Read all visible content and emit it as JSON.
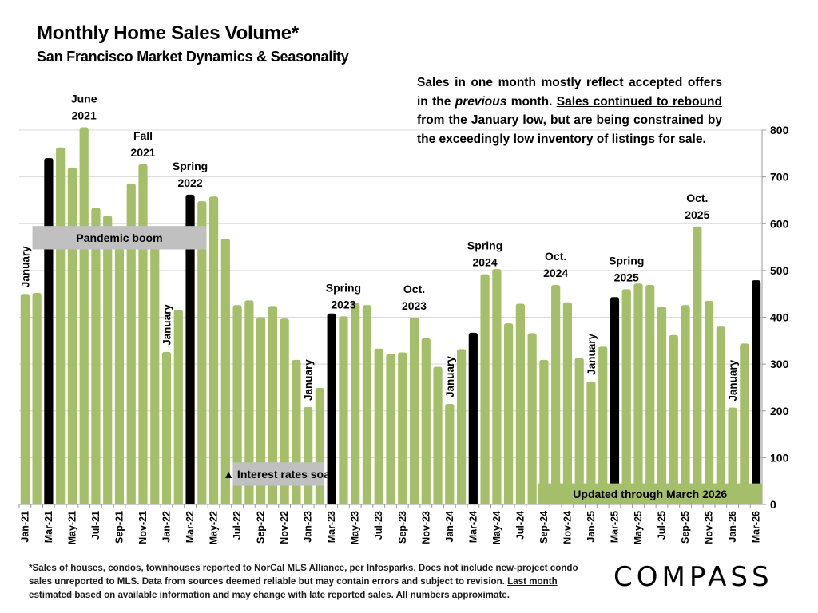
{
  "header": {
    "title": "Monthly Home Sales Volume*",
    "subtitle": "San Francisco Market Dynamics & Seasonality"
  },
  "note": {
    "part1": "Sales in one month mostly reflect accepted offers in the ",
    "italic": "previous",
    "part2": " month. ",
    "underlined": "Sales continued to rebound from the January low, but are being constrained by the exceedingly low inventory of listings for sale."
  },
  "footnote": {
    "plain": "*Sales of houses, condos, townhouses reported to NorCal MLS Alliance, per Infosparks. Does not include new-project condo sales unreported to MLS. Data from sources deemed reliable but may contain errors and subject to revision. ",
    "underlined": "Last month estimated based on available information and may change with late reported sales. All numbers approximate."
  },
  "logo": "COMPASS",
  "colors": {
    "bar": "#A5BE6A",
    "highlight": "#000000",
    "band": "#C0C0C0",
    "grid": "#D9D9D9"
  },
  "chart_data": {
    "type": "bar",
    "title": "Monthly Home Sales Volume*",
    "subtitle": "San Francisco Market Dynamics & Seasonality",
    "xlabel": "",
    "ylabel": "",
    "ylim": [
      0,
      800
    ],
    "yticks": [
      0,
      100,
      200,
      300,
      400,
      500,
      600,
      700,
      800
    ],
    "y_axis_side": "right",
    "grid": true,
    "categories": [
      "Jan-21",
      "Feb-21",
      "Mar-21",
      "Apr-21",
      "May-21",
      "Jun-21",
      "Jul-21",
      "Aug-21",
      "Sep-21",
      "Oct-21",
      "Nov-21",
      "Dec-21",
      "Jan-22",
      "Feb-22",
      "Mar-22",
      "Apr-22",
      "May-22",
      "Jun-22",
      "Jul-22",
      "Aug-22",
      "Sep-22",
      "Oct-22",
      "Nov-22",
      "Dec-22",
      "Jan-23",
      "Feb-23",
      "Mar-23",
      "Apr-23",
      "May-23",
      "Jun-23",
      "Jul-23",
      "Aug-23",
      "Sep-23",
      "Oct-23",
      "Nov-23",
      "Dec-23",
      "Jan-24",
      "Feb-24",
      "Mar-24",
      "Apr-24",
      "May-24",
      "Jun-24",
      "Jul-24",
      "Aug-24",
      "Sep-24",
      "Oct-24",
      "Nov-24",
      "Dec-24",
      "Jan-25",
      "Feb-25",
      "Mar-25",
      "Apr-25",
      "May-25",
      "Jun-25",
      "Jul-25",
      "Aug-25",
      "Sep-25",
      "Oct-25",
      "Nov-25",
      "Dec-25",
      "Jan-26",
      "Feb-26",
      "Mar-26"
    ],
    "tick_labels_shown": [
      "Jan-21",
      "Mar-21",
      "May-21",
      "Jul-21",
      "Sep-21",
      "Nov-21",
      "Jan-22",
      "Mar-22",
      "May-22",
      "Jul-22",
      "Sep-22",
      "Nov-22",
      "Jan-23",
      "Mar-23",
      "May-23",
      "Jul-23",
      "Sep-23",
      "Nov-23",
      "Jan-24",
      "Mar-24",
      "May-24",
      "Jul-24",
      "Sep-24",
      "Nov-24",
      "Jan-25",
      "Mar-25",
      "May-25",
      "Jul-25",
      "Sep-25",
      "Nov-25",
      "Jan-26",
      "Mar-26"
    ],
    "values": [
      450,
      452,
      740,
      763,
      720,
      806,
      634,
      617,
      590,
      686,
      727,
      570,
      326,
      416,
      662,
      648,
      658,
      568,
      426,
      436,
      400,
      424,
      397,
      309,
      208,
      249,
      408,
      402,
      430,
      426,
      333,
      322,
      325,
      399,
      355,
      294,
      215,
      332,
      367,
      492,
      503,
      387,
      429,
      366,
      309,
      469,
      432,
      313,
      263,
      337,
      443,
      460,
      472,
      469,
      423,
      362,
      426,
      594,
      435,
      380,
      207,
      344,
      479
    ],
    "highlighted_months": [
      "Mar-21",
      "Mar-22",
      "Mar-23",
      "Mar-24",
      "Mar-25",
      "Mar-26"
    ],
    "annotations": [
      {
        "text": "January",
        "at": "Jan-21",
        "vertical": true
      },
      {
        "text": "June\n2021",
        "at": "Jun-21"
      },
      {
        "text": "Fall\n2021",
        "at": "Nov-21"
      },
      {
        "text": "Spring\n2022",
        "at": "Mar-22"
      },
      {
        "text": "January",
        "at": "Jan-22",
        "vertical": true
      },
      {
        "text": "Spring\n2023",
        "at": "Apr-23"
      },
      {
        "text": "January",
        "at": "Jan-23",
        "vertical": true
      },
      {
        "text": "Oct.\n2023",
        "at": "Oct-23"
      },
      {
        "text": "January",
        "at": "Jan-24",
        "vertical": true
      },
      {
        "text": "Spring\n2024",
        "at": "Apr-24"
      },
      {
        "text": "Oct.\n2024",
        "at": "Oct-24"
      },
      {
        "text": "January",
        "at": "Jan-25",
        "vertical": true
      },
      {
        "text": "Spring\n2025",
        "at": "Apr-25"
      },
      {
        "text": "Oct.\n2025",
        "at": "Oct-25"
      },
      {
        "text": "January",
        "at": "Jan-26",
        "vertical": true
      }
    ],
    "bands": [
      {
        "text": "Pandemic boom",
        "from": "Feb-21",
        "to": "Apr-22",
        "y_from": 545,
        "y_to": 595
      },
      {
        "text": "▲ Interest rates soar",
        "from": "Jul-22",
        "to": "Feb-23",
        "y_from": 40,
        "y_to": 90
      },
      {
        "text": "Updated through March 2026",
        "from": "Sep-24",
        "to": "Mar-26",
        "y_from": 0,
        "y_to": 45,
        "green": true
      }
    ]
  }
}
